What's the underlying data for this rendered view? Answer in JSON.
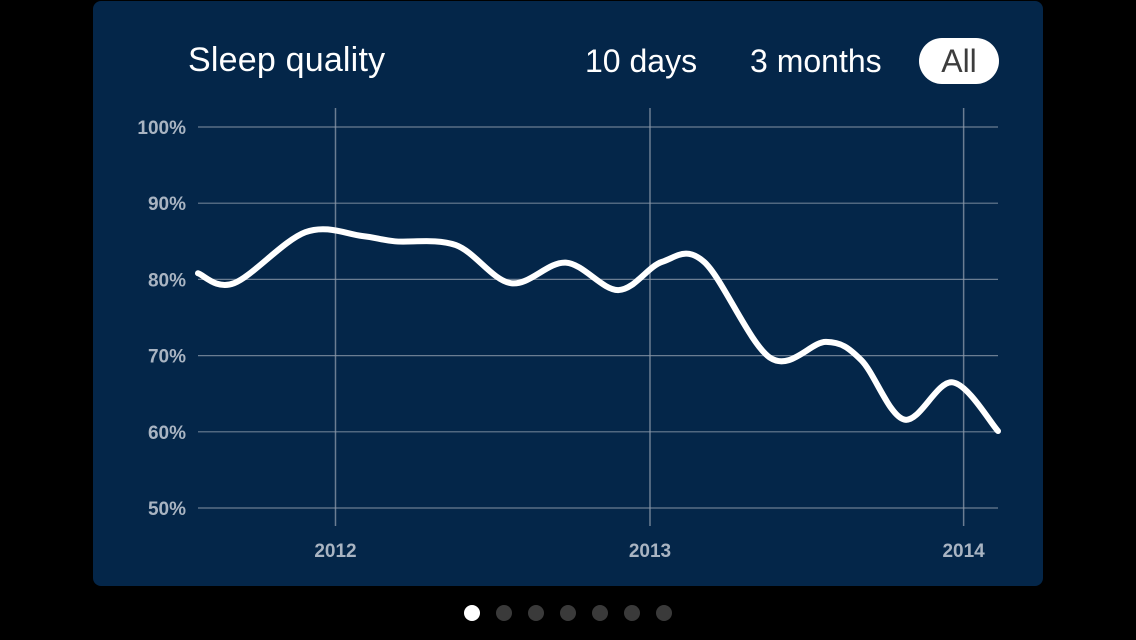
{
  "card": {
    "title": "Sleep quality",
    "ranges": [
      "10 days",
      "3 months",
      "All"
    ],
    "selected_range": "All"
  },
  "colors": {
    "background": "#000000",
    "card": "#042649",
    "line": "#ffffff",
    "grid": "#8e9bab",
    "tick_label": "#a9b4c2"
  },
  "pager": {
    "count": 7,
    "active_index": 0
  },
  "chart_data": {
    "type": "line",
    "title": "Sleep quality",
    "xlabel": "",
    "ylabel": "",
    "y_ticks": [
      "100%",
      "90%",
      "80%",
      "70%",
      "60%",
      "50%"
    ],
    "x_ticks": [
      "2012",
      "2013",
      "2014"
    ],
    "ylim": [
      50,
      100
    ],
    "xlim": [
      "2011-07-25",
      "2014-02-10"
    ],
    "grid": true,
    "series": [
      {
        "values": [
          {
            "x": "2011-07-25",
            "y": 80.8
          },
          {
            "x": "2011-09-05",
            "y": 79.5
          },
          {
            "x": "2011-11-27",
            "y": 86.2
          },
          {
            "x": "2012-02-01",
            "y": 85.7
          },
          {
            "x": "2012-03-10",
            "y": 85.0
          },
          {
            "x": "2012-05-20",
            "y": 84.5
          },
          {
            "x": "2012-07-23",
            "y": 79.5
          },
          {
            "x": "2012-09-25",
            "y": 82.2
          },
          {
            "x": "2012-11-25",
            "y": 78.6
          },
          {
            "x": "2013-01-15",
            "y": 82.3
          },
          {
            "x": "2013-03-05",
            "y": 82.3
          },
          {
            "x": "2013-05-21",
            "y": 69.7
          },
          {
            "x": "2013-07-25",
            "y": 71.8
          },
          {
            "x": "2013-09-04",
            "y": 69.4
          },
          {
            "x": "2013-10-24",
            "y": 61.6
          },
          {
            "x": "2013-12-19",
            "y": 66.5
          },
          {
            "x": "2014-02-10",
            "y": 60.1
          }
        ]
      }
    ]
  }
}
